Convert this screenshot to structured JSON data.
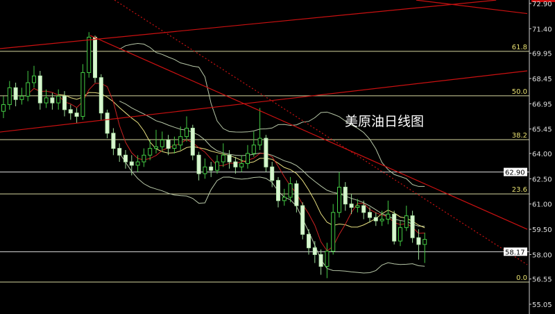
{
  "chart_data": {
    "type": "candlestick",
    "title": "美原油日线图",
    "ylim": [
      55.05,
      72.9
    ],
    "yticks": [
      "72.90",
      "71.40",
      "69.95",
      "68.45",
      "66.95",
      "65.45",
      "64.00",
      "62.50",
      "61.00",
      "59.50",
      "58.00",
      "56.55",
      "55.05"
    ],
    "grid": false,
    "colors": {
      "background": "#000000",
      "bull": "#44cc44",
      "bear": "#d8f5d0",
      "trend": "#cc1111",
      "fib": "#d8d8a0",
      "ma_short": "#cc2222",
      "ma_long": "#e8e080",
      "bands": "#b8c8a8"
    },
    "candles": [
      [
        66.5,
        67.4,
        66.1,
        66.9
      ],
      [
        66.9,
        68.3,
        66.6,
        67.9
      ],
      [
        67.9,
        68.2,
        66.8,
        67.2
      ],
      [
        67.2,
        67.9,
        66.9,
        67.4
      ],
      [
        67.4,
        68.9,
        67.1,
        68.2
      ],
      [
        68.2,
        69.2,
        67.9,
        68.6
      ],
      [
        68.6,
        68.9,
        66.6,
        67.0
      ],
      [
        67.0,
        67.8,
        66.7,
        67.3
      ],
      [
        67.3,
        67.6,
        66.6,
        67.0
      ],
      [
        67.0,
        67.8,
        66.6,
        67.4
      ],
      [
        67.4,
        67.7,
        66.2,
        66.6
      ],
      [
        66.6,
        66.9,
        66.0,
        66.4
      ],
      [
        66.4,
        66.7,
        65.8,
        66.2
      ],
      [
        66.2,
        69.3,
        66.0,
        68.8
      ],
      [
        68.8,
        71.2,
        68.5,
        70.9
      ],
      [
        70.9,
        71.0,
        68.2,
        68.5
      ],
      [
        68.5,
        68.7,
        66.0,
        66.4
      ],
      [
        66.4,
        66.6,
        64.9,
        65.2
      ],
      [
        65.2,
        65.5,
        63.9,
        64.3
      ],
      [
        64.3,
        64.6,
        63.5,
        63.9
      ],
      [
        63.9,
        64.2,
        63.1,
        63.5
      ],
      [
        63.5,
        63.9,
        62.7,
        63.3
      ],
      [
        63.3,
        63.9,
        62.9,
        63.5
      ],
      [
        63.5,
        64.3,
        63.2,
        63.9
      ],
      [
        63.9,
        64.8,
        63.6,
        64.3
      ],
      [
        64.3,
        65.4,
        64.0,
        64.4
      ],
      [
        64.4,
        65.3,
        64.1,
        64.8
      ],
      [
        64.8,
        65.1,
        63.9,
        64.3
      ],
      [
        64.3,
        65.0,
        64.0,
        64.5
      ],
      [
        64.5,
        65.6,
        64.2,
        65.0
      ],
      [
        65.0,
        66.2,
        64.7,
        65.5
      ],
      [
        65.5,
        65.7,
        63.6,
        63.9
      ],
      [
        63.9,
        64.1,
        62.4,
        62.8
      ],
      [
        62.8,
        63.7,
        62.5,
        63.2
      ],
      [
        63.2,
        63.5,
        62.6,
        63.0
      ],
      [
        63.0,
        63.9,
        62.8,
        63.5
      ],
      [
        63.5,
        64.6,
        63.2,
        63.9
      ],
      [
        63.9,
        64.2,
        63.1,
        63.5
      ],
      [
        63.5,
        63.8,
        62.8,
        63.2
      ],
      [
        63.2,
        63.9,
        62.9,
        63.4
      ],
      [
        63.4,
        64.5,
        63.1,
        64.0
      ],
      [
        64.0,
        65.3,
        63.8,
        64.5
      ],
      [
        64.5,
        66.7,
        64.2,
        64.9
      ],
      [
        64.9,
        65.1,
        62.9,
        63.2
      ],
      [
        63.2,
        63.5,
        62.0,
        62.4
      ],
      [
        62.4,
        62.6,
        60.8,
        61.2
      ],
      [
        61.2,
        61.9,
        60.9,
        61.4
      ],
      [
        61.4,
        62.6,
        61.1,
        62.2
      ],
      [
        62.2,
        62.4,
        60.5,
        60.9
      ],
      [
        60.9,
        61.1,
        58.9,
        59.2
      ],
      [
        59.2,
        59.5,
        58.0,
        58.4
      ],
      [
        58.4,
        58.8,
        57.5,
        58.0
      ],
      [
        58.0,
        58.3,
        56.8,
        57.3
      ],
      [
        57.3,
        58.7,
        56.6,
        58.2
      ],
      [
        58.2,
        61.0,
        58.0,
        60.5
      ],
      [
        60.5,
        62.9,
        60.2,
        62.0
      ],
      [
        62.0,
        62.3,
        60.6,
        61.0
      ],
      [
        61.0,
        61.6,
        60.4,
        60.8
      ],
      [
        60.8,
        61.3,
        60.5,
        60.9
      ],
      [
        60.9,
        61.2,
        60.1,
        60.5
      ],
      [
        60.5,
        60.8,
        59.9,
        60.2
      ],
      [
        60.2,
        60.5,
        59.7,
        60.0
      ],
      [
        60.0,
        60.6,
        59.7,
        60.1
      ],
      [
        60.1,
        61.2,
        59.8,
        60.4
      ],
      [
        60.4,
        60.6,
        58.6,
        58.8
      ],
      [
        58.8,
        60.0,
        58.5,
        59.6
      ],
      [
        59.6,
        60.9,
        59.4,
        60.3
      ],
      [
        60.3,
        60.6,
        58.7,
        59.0
      ],
      [
        59.0,
        59.5,
        57.7,
        58.6
      ],
      [
        58.6,
        59.3,
        57.5,
        58.9
      ]
    ],
    "fibonacci": [
      {
        "label": "61.8",
        "price": 70.06
      },
      {
        "label": "50.0",
        "price": 67.42
      },
      {
        "label": "38.2",
        "price": 64.82
      },
      {
        "label": "23.6",
        "price": 61.6
      },
      {
        "label": "0.0",
        "price": 56.37
      }
    ],
    "price_lines": [
      {
        "label": "62.90",
        "price": 62.9
      },
      {
        "label": "58.17",
        "price": 58.17
      }
    ],
    "trendlines": [
      {
        "from": [
          -0.57,
          70.22
        ],
        "to": [
          80.7,
          73.1
        ],
        "style": "solid"
      },
      {
        "from": [
          67.6,
          73.1
        ],
        "to": [
          85.8,
          72.3
        ],
        "style": "solid"
      },
      {
        "from": [
          -0.57,
          65.27
        ],
        "to": [
          85.8,
          68.9
        ],
        "style": "solid"
      },
      {
        "from": [
          14.2,
          71.0
        ],
        "to": [
          85.8,
          59.5
        ],
        "style": "solid"
      },
      {
        "from": [
          18.2,
          73.1
        ],
        "to": [
          85.8,
          57.4
        ],
        "style": "dotted"
      }
    ]
  }
}
